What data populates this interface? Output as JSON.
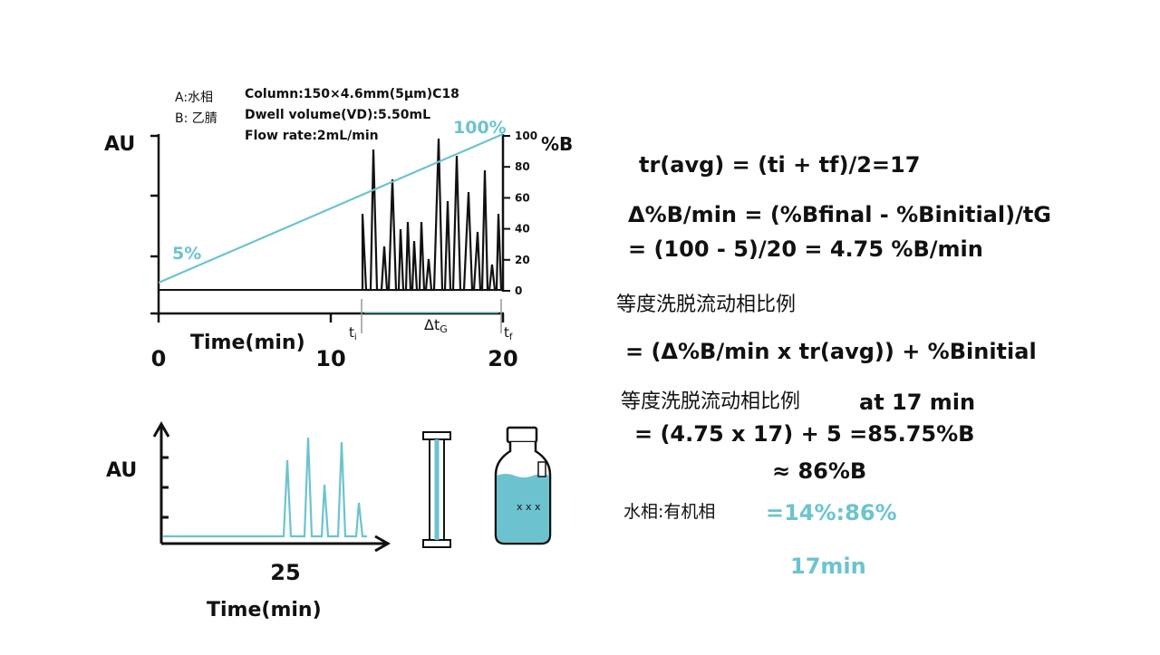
{
  "top_chart": {
    "legend": [
      "A:水相",
      "B: 乙腈"
    ],
    "conditions": [
      "Column:150×4.6mm(5μm)C18",
      "Dwell volume(VD):5.50mL",
      "Flow rate:2mL/min"
    ],
    "y_label": "AU",
    "y2_label": "%B",
    "x_label": "Time(min)",
    "xticks": [
      0,
      10,
      20
    ],
    "y2ticks": [
      0,
      20,
      40,
      60,
      80,
      100
    ],
    "start_label": "5%",
    "end_label": "100%",
    "ti": {
      "main": "t",
      "sub": "i"
    },
    "tf": {
      "main": "t",
      "sub": "f"
    },
    "dtg": {
      "main": "Δt",
      "sub": "G"
    }
  },
  "bottom_chart": {
    "y_label": "AU",
    "xtick": 25,
    "x_label": "Time(min)"
  },
  "formulas": {
    "line1": "tr(avg) = (ti + tf)/2=17",
    "line2": "Δ%B/min = (%Bfinal - %Binitial)/tG",
    "line3": "= (100 - 5)/20 = 4.75 %B/min",
    "line4": "等度洗脱流动相比例",
    "line5": "= (Δ%B/min x tr(avg)) + %Binitial",
    "line6": "等度洗脱流动相比例",
    "line6b": "at 17 min",
    "line7": "= (4.75 x 17) + 5 =85.75%B",
    "line8": "≈ 86%B",
    "line9": "水相:有机相",
    "line9b": "=14%:86%",
    "line10": "17min"
  }
}
